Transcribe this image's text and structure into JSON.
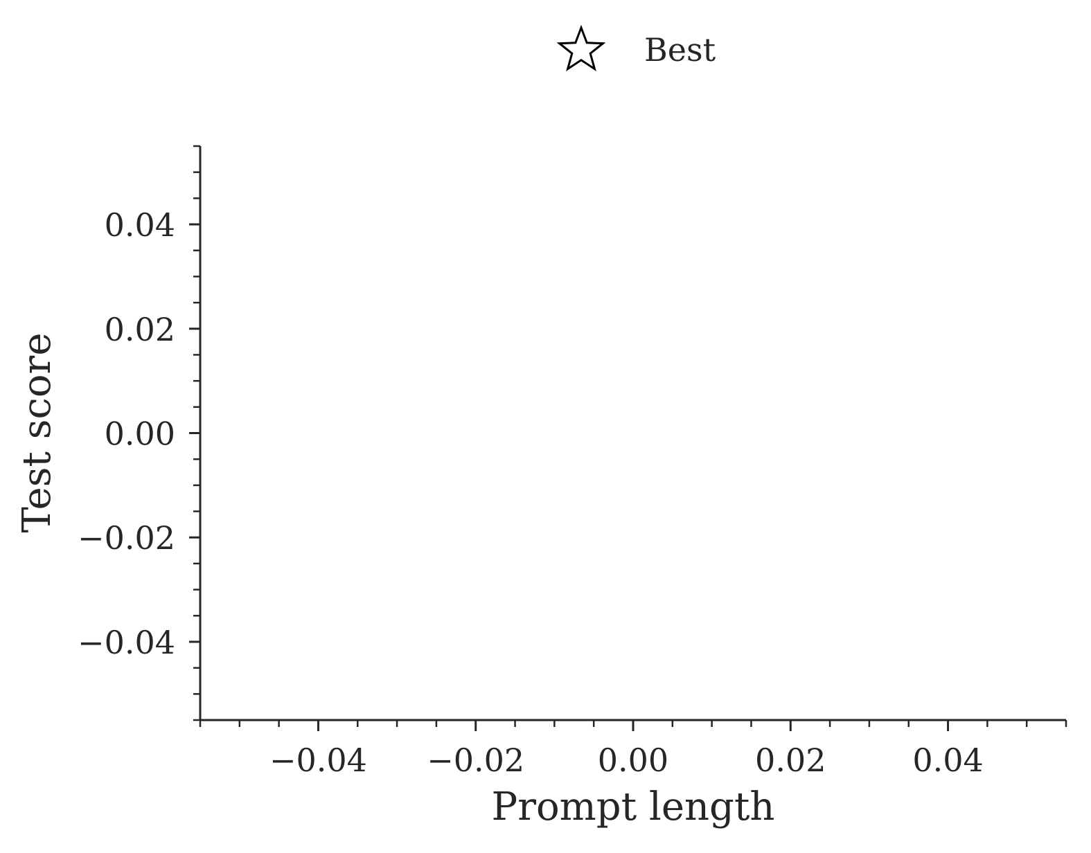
{
  "chart_data": {
    "type": "scatter",
    "title": "",
    "xlabel": "Prompt length",
    "ylabel": "Test score",
    "xlim": [
      -0.055,
      0.055
    ],
    "ylim": [
      -0.055,
      0.055
    ],
    "x_ticks": [
      -0.04,
      -0.02,
      0.0,
      0.02,
      0.04
    ],
    "x_tick_labels": [
      "−0.04",
      "−0.02",
      "0.00",
      "0.02",
      "0.04"
    ],
    "y_ticks": [
      0.04,
      0.02,
      0.0,
      -0.02,
      -0.04
    ],
    "y_tick_labels": [
      "0.04",
      "0.02",
      "0.00",
      "−0.02",
      "−0.04"
    ],
    "minor_tick_step": 0.005,
    "grid": false,
    "legend_position": "top-center",
    "legend": [
      {
        "label": "Best",
        "marker": "star-icon",
        "marker_fill": "#ffffff",
        "marker_edge": "#000000"
      }
    ],
    "series": []
  }
}
